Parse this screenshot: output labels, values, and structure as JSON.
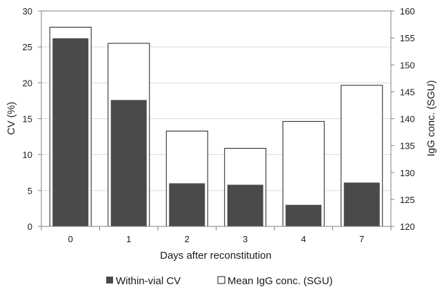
{
  "chart_data": {
    "type": "bar",
    "categories": [
      "0",
      "1",
      "2",
      "3",
      "4",
      "7"
    ],
    "series": [
      {
        "name": "Within-vial CV",
        "axis": "left",
        "values": [
          26.2,
          17.6,
          6.0,
          5.8,
          3.0,
          6.1
        ],
        "color": "#4a4a4a"
      },
      {
        "name": "Mean IgG conc. (SGU)",
        "axis": "right",
        "values": [
          157.0,
          154.0,
          137.7,
          134.5,
          139.5,
          146.2
        ],
        "color": "#ffffff",
        "stroke": "#1a1a1a"
      }
    ],
    "xlabel": "Days after reconstitution",
    "ylabel": "CV (%)",
    "y2label": "IgG conc. (SGU)",
    "ylim": [
      0,
      30
    ],
    "y2lim": [
      120,
      160
    ],
    "yticks": [
      0,
      5,
      10,
      15,
      20,
      25,
      30
    ],
    "y2ticks": [
      120,
      125,
      130,
      135,
      140,
      145,
      150,
      155,
      160
    ],
    "grid": true,
    "legend": "bottom"
  }
}
